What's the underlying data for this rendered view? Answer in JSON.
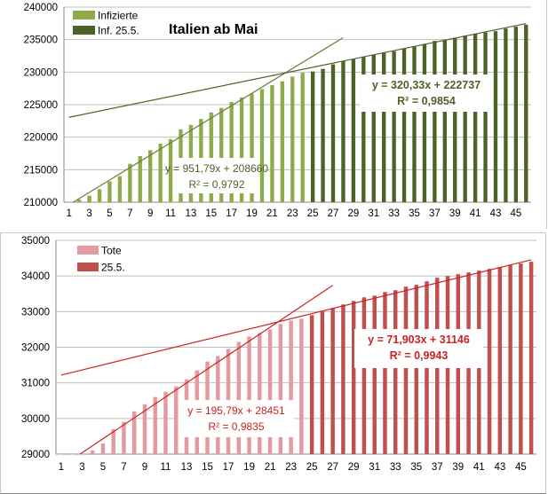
{
  "chart_data": [
    {
      "type": "bar",
      "title": "Italien ab Mai",
      "ylim": [
        210000,
        240000
      ],
      "yticks": [
        210000,
        215000,
        220000,
        225000,
        230000,
        235000,
        240000
      ],
      "xlabels": [
        "1",
        "3",
        "5",
        "7",
        "9",
        "11",
        "13",
        "15",
        "17",
        "19",
        "21",
        "23",
        "25",
        "27",
        "29",
        "31",
        "33",
        "35",
        "37",
        "39",
        "41",
        "43",
        "45"
      ],
      "colors": {
        "light": "#8faa4b",
        "dark": "#4e6228",
        "trend_light": "#6f7f3a",
        "trend_dark": "#4e6228"
      },
      "series": [
        {
          "name": "Infizierte",
          "days": [
            1,
            24
          ],
          "values": [
            209300,
            210400,
            211000,
            212000,
            213200,
            214000,
            215900,
            217100,
            218000,
            219000,
            219700,
            221200,
            221900,
            222800,
            223800,
            224500,
            225400,
            226100,
            226700,
            227400,
            228000,
            228600,
            229300,
            229900
          ]
        },
        {
          "name": "Inf. 25.5.",
          "days": [
            25,
            46
          ],
          "values": [
            230100,
            230500,
            231200,
            231700,
            232000,
            232400,
            232700,
            233000,
            233200,
            233600,
            233900,
            234300,
            234800,
            235000,
            235300,
            235600,
            235900,
            236100,
            236300,
            236700,
            237000,
            237300
          ]
        }
      ],
      "trendlines": [
        {
          "label": "y = 951,79x + 208660",
          "r2": "R² = 0,9792",
          "slope": 951.79,
          "intercept": 208660,
          "x_from": 1,
          "x_to": 28
        },
        {
          "label": "y = 320,33x + 222737",
          "r2": "R² = 0,9854",
          "slope": 320.33,
          "intercept": 222737,
          "x_from": 1,
          "x_to": 46
        }
      ]
    },
    {
      "type": "bar",
      "title": "",
      "ylim": [
        29000,
        35000
      ],
      "yticks": [
        29000,
        30000,
        31000,
        32000,
        33000,
        34000,
        35000
      ],
      "xlabels": [
        "1",
        "3",
        "5",
        "7",
        "9",
        "11",
        "13",
        "15",
        "17",
        "19",
        "21",
        "23",
        "25",
        "27",
        "29",
        "31",
        "33",
        "35",
        "37",
        "39",
        "41",
        "43",
        "45"
      ],
      "colors": {
        "light": "#e39aa0",
        "dark": "#c0504d",
        "trend_light": "#cc2222",
        "trend_dark": "#cc2222"
      },
      "series": [
        {
          "name": "Tote",
          "days": [
            1,
            24
          ],
          "values": [
            28800,
            28900,
            29000,
            29100,
            29300,
            29700,
            29900,
            30200,
            30400,
            30600,
            30750,
            30900,
            31100,
            31350,
            31600,
            31750,
            31950,
            32150,
            32300,
            32400,
            32500,
            32650,
            32750,
            32800
          ]
        },
        {
          "name": "25.5.",
          "days": [
            25,
            46
          ],
          "values": [
            32900,
            33000,
            33100,
            33200,
            33300,
            33400,
            33450,
            33550,
            33600,
            33700,
            33750,
            33850,
            33950,
            34000,
            34050,
            34100,
            34150,
            34200,
            34250,
            34300,
            34350,
            34400
          ]
        }
      ],
      "trendlines": [
        {
          "label": "y = 195,79x + 28451",
          "r2": "R² = 0,9835",
          "slope": 195.79,
          "intercept": 28451,
          "x_from": 1,
          "x_to": 27
        },
        {
          "label": "y = 71,903x + 31146",
          "r2": "R² = 0,9943",
          "slope": 71.903,
          "intercept": 31146,
          "x_from": 1,
          "x_to": 46
        }
      ]
    }
  ]
}
